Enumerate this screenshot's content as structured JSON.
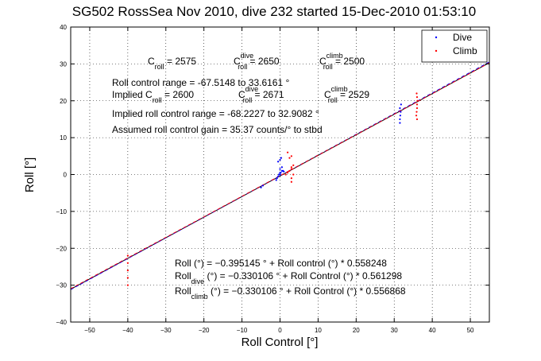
{
  "chart_data": {
    "type": "scatter",
    "title": "SG502 RossSea Nov 2010, dive 232 started 15-Dec-2010 01:53:10",
    "xlabel": "Roll Control [°]",
    "ylabel": "Roll [°]",
    "xlim": [
      -55,
      55
    ],
    "ylim": [
      -40,
      40
    ],
    "xticks": [
      -50,
      -40,
      -30,
      -20,
      -10,
      0,
      10,
      20,
      30,
      40,
      50
    ],
    "yticks": [
      -40,
      -30,
      -20,
      -10,
      0,
      10,
      20,
      30,
      40
    ],
    "xtick_labels": [
      "−50",
      "−40",
      "−30",
      "−20",
      "−10",
      "0",
      "10",
      "20",
      "30",
      "40",
      "50"
    ],
    "ytick_labels": [
      "−40",
      "−30",
      "−20",
      "−10",
      "0",
      "10",
      "20",
      "30",
      "40"
    ],
    "grid": true,
    "legend_position": "top-right",
    "colors": {
      "dive": "#0000ff",
      "climb": "#ff0000",
      "fit_all": "#000000",
      "text": "#000000"
    },
    "series": [
      {
        "name": "Dive",
        "marker": "dot",
        "x": [
          -5,
          -4.5,
          -1,
          -0.8,
          -0.5,
          -0.3,
          0,
          0,
          0.2,
          0.5,
          0.8,
          1,
          -0.5,
          0,
          0.3,
          0,
          0.5,
          31.5,
          31.5,
          31.6,
          31.7,
          31.5,
          31.8
        ],
        "y": [
          -3.5,
          -3,
          -1.5,
          -1,
          -0.5,
          0,
          0,
          0.5,
          0.5,
          1,
          1,
          0.8,
          3.5,
          4,
          4.5,
          1.5,
          2,
          14,
          15,
          16,
          17,
          18,
          19
        ]
      },
      {
        "name": "Climb",
        "marker": "dot",
        "x": [
          -40,
          -40,
          -40,
          -40,
          -40,
          1.5,
          2,
          2.5,
          3,
          3,
          3.5,
          3.5,
          2.5,
          3,
          2,
          35.8,
          35.9,
          36,
          36,
          36.1,
          36,
          35.9,
          36,
          3,
          3
        ],
        "y": [
          -22,
          -24,
          -26,
          -28,
          -30,
          0,
          0.5,
          1,
          1.5,
          2,
          2.5,
          0,
          4.5,
          5,
          6,
          16,
          17,
          18,
          19,
          20,
          21,
          22,
          15,
          -1,
          -2
        ]
      }
    ],
    "fits": [
      {
        "name": "Roll",
        "intercept": -0.395145,
        "slope": 0.558248,
        "color": "#000000",
        "style": "solid"
      },
      {
        "name": "Roll dive",
        "intercept": -0.330106,
        "slope": 0.561298,
        "color": "#0000ff",
        "style": "dashed"
      },
      {
        "name": "Roll climb",
        "intercept": -0.330106,
        "slope": 0.556868,
        "color": "#ff0000",
        "style": "dashed"
      }
    ],
    "legend": [
      {
        "label": "Dive",
        "color": "#0000ff"
      },
      {
        "label": "Climb",
        "color": "#ff0000"
      }
    ],
    "annotations": {
      "c_roll_line": [
        {
          "main": "C",
          "sub": "roll",
          "sup": "",
          "value": " = 2575"
        },
        {
          "main": "C",
          "sub": "roll",
          "sup": "dive",
          "value": " = 2650"
        },
        {
          "main": "C",
          "sub": "roll",
          "sup": "climb",
          "value": " = 2500"
        }
      ],
      "range_line": "Roll control range = -67.5148 to 33.6161 °",
      "implied_line": [
        {
          "main": "Implied C",
          "sub": "roll",
          "sup": "",
          "value": " = 2600"
        },
        {
          "main": "C",
          "sub": "roll",
          "sup": "dive",
          "value": " = 2671"
        },
        {
          "main": "C",
          "sub": "roll",
          "sup": "climb",
          "value": " = 2529"
        }
      ],
      "implied_range_line": "Implied roll control range = -68.2227 to 32.9082 °",
      "gain_line": "Assumed roll control gain = 35.37 counts/° to stbd",
      "fit_lines": [
        {
          "main": "Roll",
          "sub": "",
          "rest": " (°) = −0.395145 ° + Roll control (°) * 0.558248"
        },
        {
          "main": "Roll",
          "sub": "dive",
          "rest": " (°) = −0.330106 ° + Roll Control (°) * 0.561298"
        },
        {
          "main": "Roll",
          "sub": "climb",
          "rest": " (°) = −0.330106 ° + Roll Control (°) * 0.556868"
        }
      ]
    }
  }
}
